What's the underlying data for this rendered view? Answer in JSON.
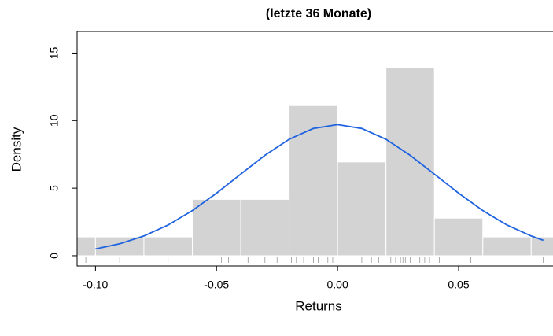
{
  "chart_data": {
    "type": "histogram",
    "title": "(letzte 36 Monate)",
    "x_label": "Returns",
    "y_label": "Density",
    "bins": [
      -0.12,
      -0.1,
      -0.08,
      -0.06,
      -0.04,
      -0.02,
      0.0,
      0.02,
      0.04,
      0.06,
      0.08,
      0.1
    ],
    "values": [
      1.39,
      1.39,
      1.39,
      4.17,
      4.17,
      11.11,
      6.94,
      13.89,
      2.78,
      1.39,
      1.39
    ],
    "color": "#d3d3d3",
    "xlim": [
      -0.1076,
      0.089
    ],
    "ylim": [
      -0.76,
      16.6
    ],
    "xticks": [
      {
        "value": -0.1,
        "label": "-0.10"
      },
      {
        "value": -0.05,
        "label": "-0.05"
      },
      {
        "value": 0,
        "label": "0.00"
      },
      {
        "value": 0.05,
        "label": "0.05"
      }
    ],
    "yticks": [
      0,
      5,
      10,
      15
    ],
    "curve": {
      "color": "#1f63e0",
      "x": [
        -0.1,
        -0.09,
        -0.08,
        -0.07,
        -0.06,
        -0.05,
        -0.04,
        -0.03,
        -0.02,
        -0.01,
        0.0,
        0.01,
        0.02,
        0.03,
        0.04,
        0.05,
        0.06,
        0.07,
        0.08,
        0.085
      ],
      "y": [
        0.5,
        0.88,
        1.46,
        2.27,
        3.34,
        4.63,
        6.04,
        7.43,
        8.62,
        9.42,
        9.7,
        9.42,
        8.62,
        7.43,
        6.04,
        4.63,
        3.34,
        2.27,
        1.46,
        1.14
      ]
    },
    "rug": [
      -0.104,
      -0.09,
      -0.07,
      -0.058,
      -0.048,
      -0.045,
      -0.037,
      -0.03,
      -0.025,
      -0.019,
      -0.017,
      -0.014,
      -0.01,
      -0.008,
      -0.006,
      -0.004,
      -0.002,
      0.003,
      0.006,
      0.01,
      0.014,
      0.017,
      0.022,
      0.024,
      0.026,
      0.027,
      0.028,
      0.03,
      0.032,
      0.034,
      0.036,
      0.038,
      0.042,
      0.055,
      0.07,
      0.085
    ]
  }
}
